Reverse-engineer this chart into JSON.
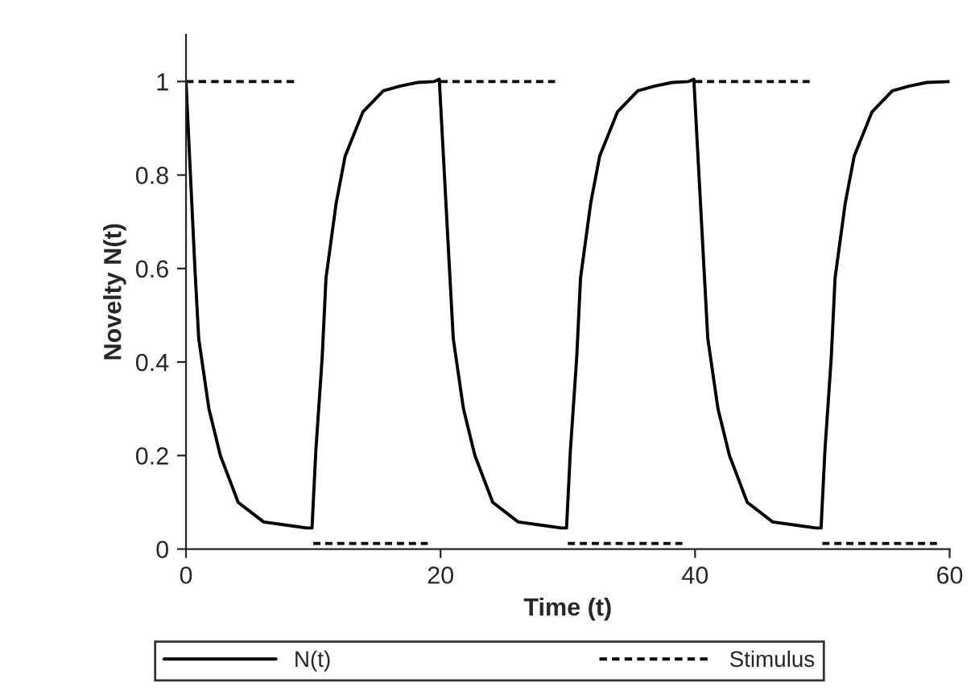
{
  "chart_data": {
    "type": "line",
    "xlabel": "Time (t)",
    "ylabel": "Novelty N(t)",
    "xlim": [
      0,
      60
    ],
    "xticks": [
      0,
      20,
      40,
      60
    ],
    "ylim": [
      0,
      1.1
    ],
    "yticks": [
      0,
      0.2,
      0.4,
      0.6,
      0.8,
      1
    ],
    "grid": false,
    "legend": "bottom",
    "marker": "none",
    "series": [
      {
        "name": "N(t)",
        "color": "#000000",
        "line_style": "solid",
        "x": [
          0,
          0.7,
          1,
          1.8,
          2.7,
          4.1,
          6.1,
          8.2,
          9.5,
          9.9,
          10.2,
          10.7,
          11,
          11.8,
          12.5,
          13.9,
          15.5,
          16.8,
          18.2,
          19.5,
          19.9,
          20.7,
          21,
          21.8,
          22.7,
          24.1,
          26.1,
          28.2,
          29.5,
          29.9,
          30.2,
          30.7,
          31,
          31.8,
          32.5,
          33.9,
          35.5,
          36.8,
          38.2,
          39.5,
          39.9,
          40.7,
          41,
          41.8,
          42.7,
          44.1,
          46.1,
          48.2,
          49.5,
          49.9,
          50.2,
          50.7,
          51,
          51.8,
          52.5,
          53.9,
          55.5,
          56.8,
          58.2,
          60
        ],
        "values": [
          1,
          0.6,
          0.45,
          0.3,
          0.2,
          0.1,
          0.058,
          0.05,
          0.045,
          0.045,
          0.21,
          0.41,
          0.58,
          0.74,
          0.84,
          0.935,
          0.98,
          0.99,
          0.998,
          1,
          1.005,
          0.6,
          0.45,
          0.3,
          0.2,
          0.1,
          0.058,
          0.05,
          0.045,
          0.045,
          0.21,
          0.41,
          0.58,
          0.74,
          0.84,
          0.935,
          0.98,
          0.99,
          0.998,
          1,
          1.005,
          0.6,
          0.45,
          0.3,
          0.2,
          0.1,
          0.058,
          0.05,
          0.045,
          0.045,
          0.21,
          0.41,
          0.58,
          0.74,
          0.84,
          0.935,
          0.98,
          0.99,
          0.998,
          1
        ]
      },
      {
        "name": "Stimulus",
        "color": "#000000",
        "line_style": "dashed",
        "x": [
          0,
          8.5
        ],
        "values": [
          1,
          1
        ]
      },
      {
        "color": "#000000",
        "line_style": "dashed",
        "x": [
          10,
          19
        ],
        "values": [
          0.012,
          0.012
        ]
      },
      {
        "color": "#000000",
        "line_style": "dashed",
        "x": [
          20,
          29
        ],
        "values": [
          1,
          1
        ]
      },
      {
        "color": "#000000",
        "line_style": "dashed",
        "x": [
          30,
          39
        ],
        "values": [
          0.012,
          0.012
        ]
      },
      {
        "color": "#000000",
        "line_style": "dashed",
        "x": [
          40,
          49
        ],
        "values": [
          1,
          1
        ]
      },
      {
        "color": "#000000",
        "line_style": "dashed",
        "x": [
          50,
          59
        ],
        "values": [
          0.012,
          0.012
        ]
      }
    ]
  }
}
